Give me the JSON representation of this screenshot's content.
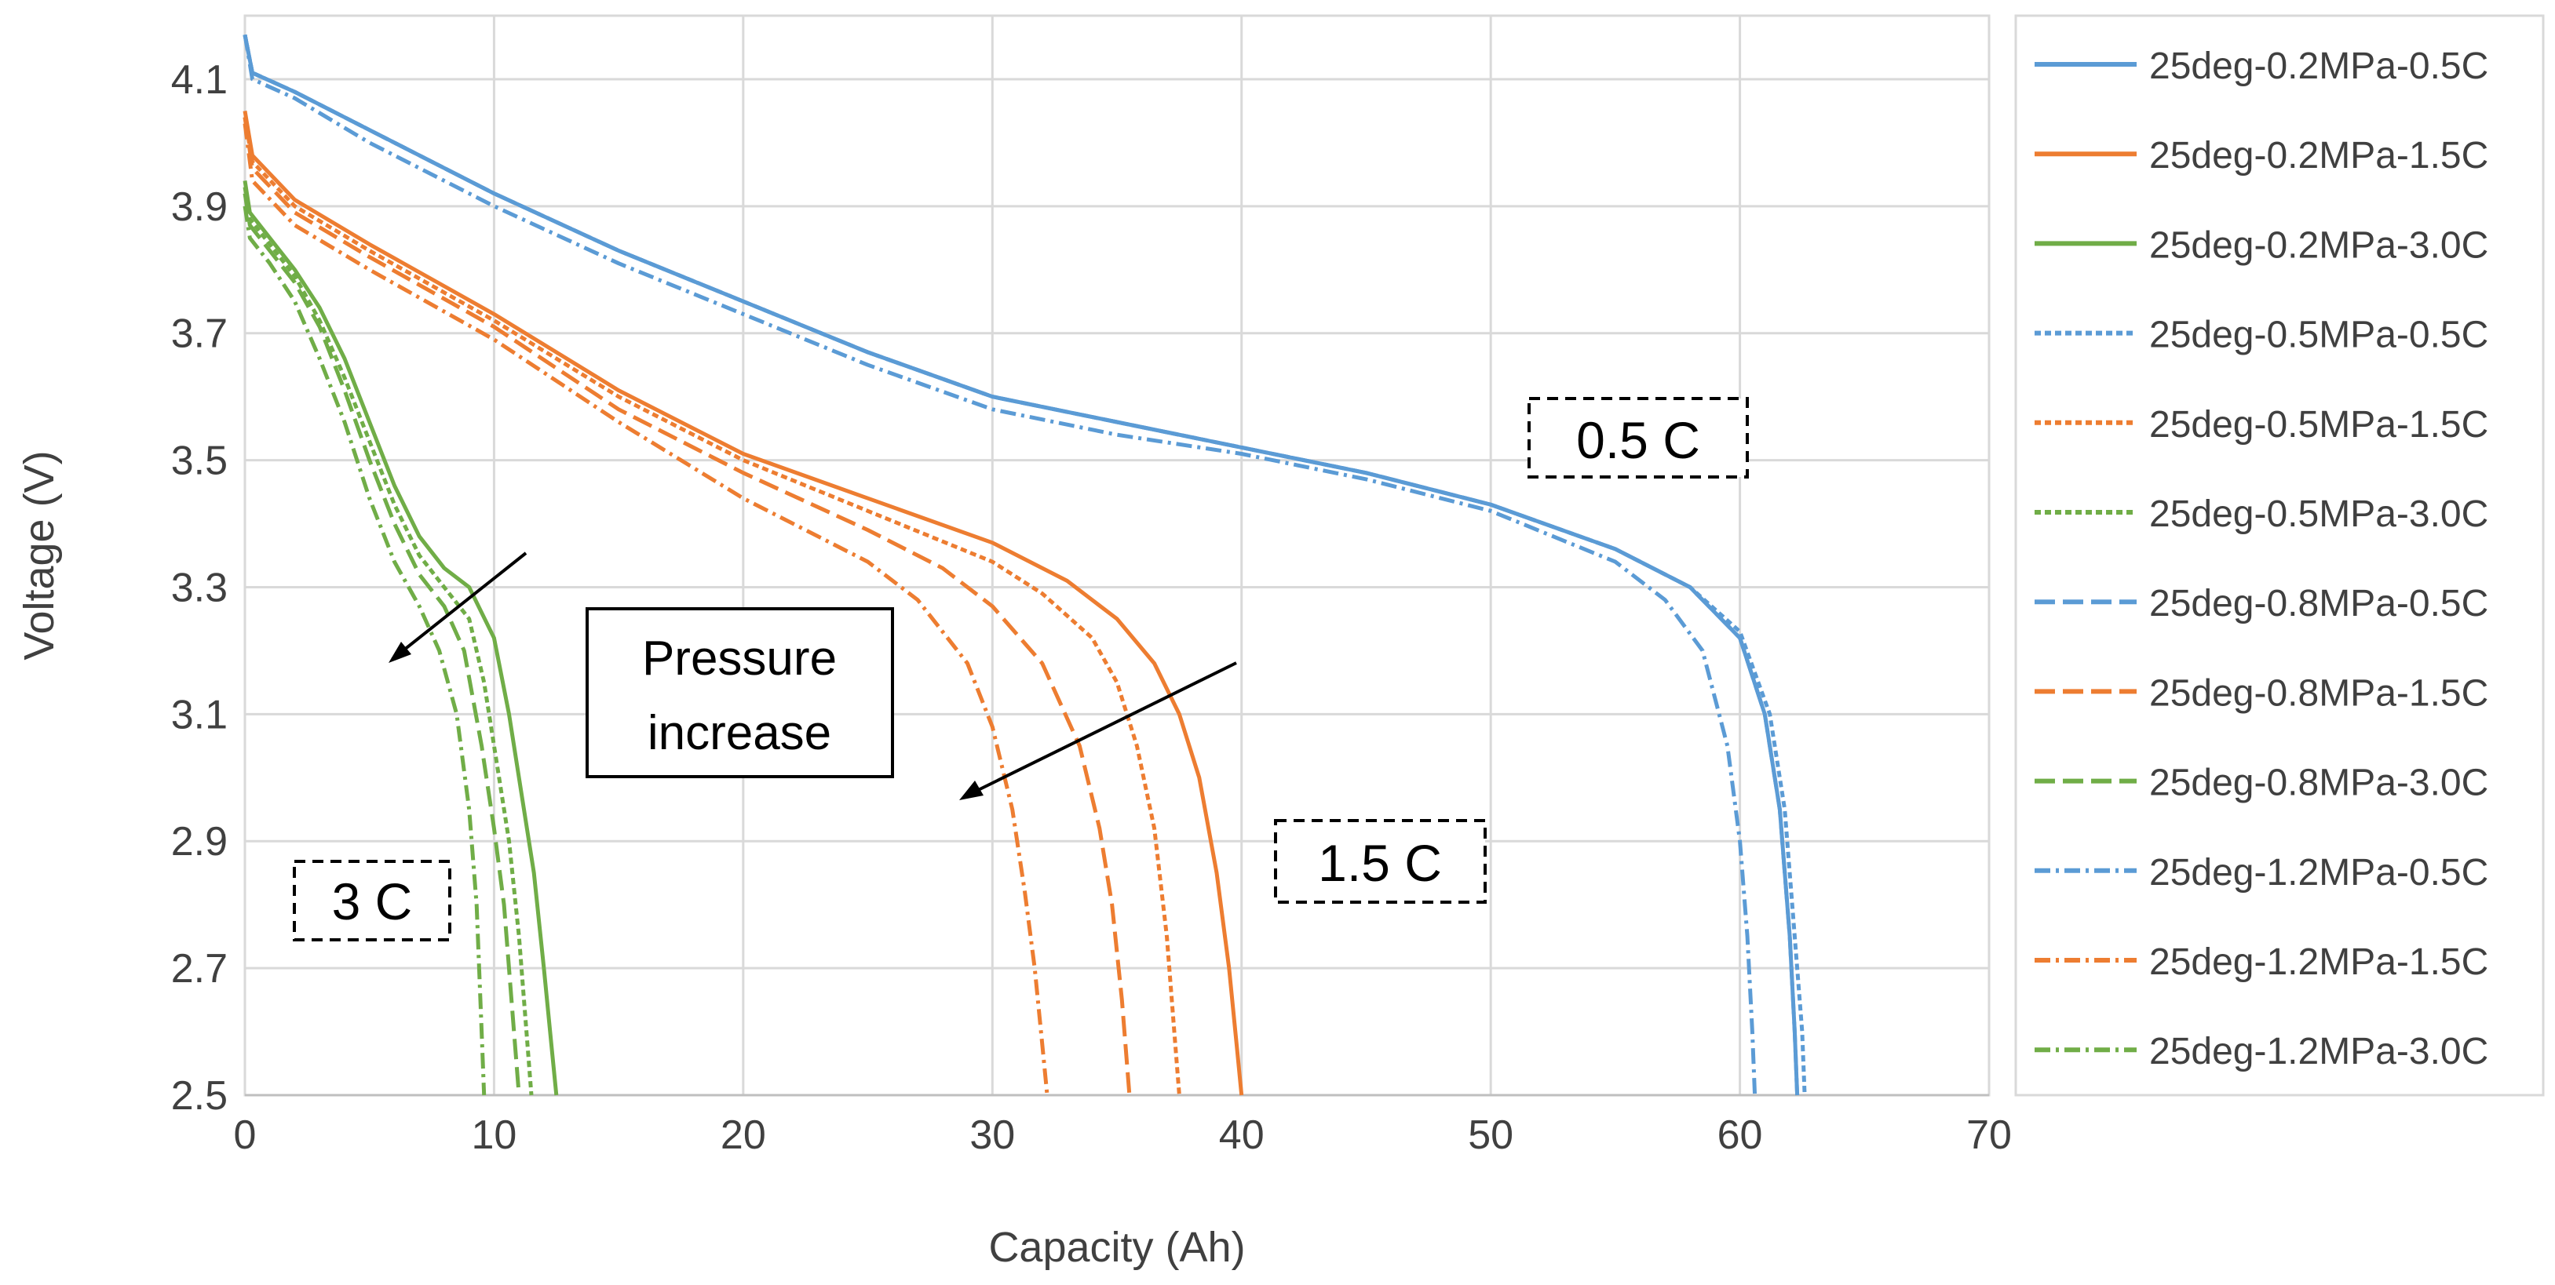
{
  "chart_data": {
    "type": "line",
    "title": "",
    "xlabel": "Capacity (Ah)",
    "ylabel": "Voltage (V)",
    "xlim": [
      0,
      70
    ],
    "ylim": [
      2.5,
      4.2
    ],
    "xticks": [
      0,
      10,
      20,
      30,
      40,
      50,
      60,
      70
    ],
    "yticks": [
      2.5,
      2.7,
      2.9,
      3.1,
      3.3,
      3.5,
      3.7,
      3.9,
      4.1
    ],
    "grid": true,
    "legend_position": "right",
    "colors": {
      "c05": "#5b9bd5",
      "c15": "#ed7d31",
      "c30": "#70ad47"
    },
    "series": [
      {
        "name": "25deg-0.2MPa-0.5C",
        "color": "#5b9bd5",
        "dash": "solid",
        "x": [
          0,
          0.3,
          2,
          5,
          10,
          15,
          20,
          25,
          30,
          35,
          40,
          45,
          50,
          55,
          58,
          60,
          61,
          61.6,
          62,
          62.2,
          62.3
        ],
        "y": [
          4.17,
          4.11,
          4.08,
          4.02,
          3.92,
          3.83,
          3.75,
          3.67,
          3.6,
          3.56,
          3.52,
          3.48,
          3.43,
          3.36,
          3.3,
          3.22,
          3.1,
          2.95,
          2.75,
          2.6,
          2.5
        ]
      },
      {
        "name": "25deg-0.2MPa-1.5C",
        "color": "#ed7d31",
        "dash": "solid",
        "x": [
          0,
          0.3,
          2,
          5,
          10,
          15,
          20,
          25,
          30,
          33,
          35,
          36.5,
          37.5,
          38.3,
          39,
          39.5,
          39.8,
          40
        ],
        "y": [
          4.05,
          3.98,
          3.91,
          3.84,
          3.73,
          3.61,
          3.51,
          3.44,
          3.37,
          3.31,
          3.25,
          3.18,
          3.1,
          3.0,
          2.85,
          2.7,
          2.58,
          2.5
        ]
      },
      {
        "name": "25deg-0.2MPa-3.0C",
        "color": "#70ad47",
        "dash": "solid",
        "x": [
          0,
          0.2,
          1,
          2,
          3,
          4,
          5,
          6,
          7,
          8,
          9,
          10,
          10.6,
          11.2,
          11.6,
          12,
          12.3,
          12.5
        ],
        "y": [
          3.94,
          3.89,
          3.85,
          3.8,
          3.74,
          3.66,
          3.56,
          3.46,
          3.38,
          3.33,
          3.3,
          3.22,
          3.1,
          2.95,
          2.85,
          2.7,
          2.58,
          2.5
        ]
      },
      {
        "name": "25deg-0.5MPa-0.5C",
        "color": "#5b9bd5",
        "dash": "8,5",
        "x": [
          0,
          0.3,
          2,
          5,
          10,
          15,
          20,
          25,
          30,
          35,
          40,
          45,
          50,
          55,
          58,
          60,
          61.2,
          61.8,
          62.2,
          62.5,
          62.6
        ],
        "y": [
          4.17,
          4.11,
          4.08,
          4.02,
          3.92,
          3.83,
          3.75,
          3.67,
          3.6,
          3.56,
          3.52,
          3.48,
          3.43,
          3.36,
          3.3,
          3.23,
          3.1,
          2.95,
          2.75,
          2.6,
          2.5
        ]
      },
      {
        "name": "25deg-0.5MPa-1.5C",
        "color": "#ed7d31",
        "dash": "8,5",
        "x": [
          0,
          0.3,
          2,
          5,
          10,
          15,
          20,
          25,
          30,
          32,
          34,
          35,
          35.8,
          36.5,
          37,
          37.3,
          37.5
        ],
        "y": [
          4.04,
          3.97,
          3.9,
          3.83,
          3.72,
          3.6,
          3.5,
          3.42,
          3.34,
          3.29,
          3.22,
          3.15,
          3.05,
          2.92,
          2.75,
          2.6,
          2.5
        ]
      },
      {
        "name": "25deg-0.5MPa-3.0C",
        "color": "#70ad47",
        "dash": "8,5",
        "x": [
          0,
          0.2,
          1,
          2,
          3,
          4,
          5,
          6,
          7,
          8,
          9,
          9.6,
          10.2,
          10.6,
          11,
          11.3,
          11.5
        ],
        "y": [
          3.93,
          3.88,
          3.84,
          3.79,
          3.72,
          3.63,
          3.53,
          3.43,
          3.35,
          3.3,
          3.25,
          3.15,
          3.0,
          2.9,
          2.75,
          2.6,
          2.5
        ]
      },
      {
        "name": "25deg-0.8MPa-0.5C",
        "color": "#5b9bd5",
        "dash": "26,10",
        "x": [
          0,
          0.3,
          2,
          5,
          10,
          15,
          20,
          25,
          30,
          35,
          40,
          45,
          50,
          55,
          58,
          60,
          61,
          61.6,
          62,
          62.2,
          62.3
        ],
        "y": [
          4.17,
          4.11,
          4.08,
          4.02,
          3.92,
          3.83,
          3.75,
          3.67,
          3.6,
          3.56,
          3.52,
          3.48,
          3.43,
          3.36,
          3.3,
          3.22,
          3.1,
          2.95,
          2.75,
          2.6,
          2.5
        ]
      },
      {
        "name": "25deg-0.8MPa-1.5C",
        "color": "#ed7d31",
        "dash": "26,10",
        "x": [
          0,
          0.3,
          2,
          5,
          10,
          15,
          20,
          25,
          28,
          30,
          32,
          33.5,
          34.3,
          34.8,
          35.2,
          35.5
        ],
        "y": [
          4.04,
          3.96,
          3.89,
          3.82,
          3.71,
          3.58,
          3.48,
          3.39,
          3.33,
          3.27,
          3.18,
          3.05,
          2.92,
          2.8,
          2.65,
          2.5
        ]
      },
      {
        "name": "25deg-0.8MPa-3.0C",
        "color": "#70ad47",
        "dash": "26,10",
        "x": [
          0,
          0.2,
          1,
          2,
          3,
          4,
          5,
          6,
          7,
          8,
          8.8,
          9.5,
          10,
          10.4,
          10.8,
          11
        ],
        "y": [
          3.92,
          3.87,
          3.83,
          3.78,
          3.71,
          3.61,
          3.5,
          3.4,
          3.32,
          3.27,
          3.2,
          3.05,
          2.92,
          2.8,
          2.6,
          2.5
        ]
      },
      {
        "name": "25deg-1.2MPa-0.5C",
        "color": "#5b9bd5",
        "dash": "20,7,4,7",
        "x": [
          0,
          0.3,
          2,
          5,
          10,
          15,
          20,
          25,
          30,
          35,
          40,
          45,
          50,
          55,
          57,
          58.5,
          59.5,
          60,
          60.3,
          60.5,
          60.6
        ],
        "y": [
          4.17,
          4.1,
          4.07,
          4.0,
          3.9,
          3.81,
          3.73,
          3.65,
          3.58,
          3.54,
          3.51,
          3.47,
          3.42,
          3.34,
          3.28,
          3.2,
          3.05,
          2.9,
          2.75,
          2.6,
          2.5
        ]
      },
      {
        "name": "25deg-1.2MPa-1.5C",
        "color": "#ed7d31",
        "dash": "20,7,4,7",
        "x": [
          0,
          0.3,
          2,
          5,
          10,
          15,
          20,
          25,
          27,
          29,
          30,
          30.8,
          31.3,
          31.7,
          32,
          32.2
        ],
        "y": [
          4.03,
          3.94,
          3.87,
          3.8,
          3.69,
          3.56,
          3.44,
          3.34,
          3.28,
          3.18,
          3.08,
          2.95,
          2.82,
          2.7,
          2.58,
          2.5
        ]
      },
      {
        "name": "25deg-1.2MPa-3.0C",
        "color": "#70ad47",
        "dash": "20,7,4,7",
        "x": [
          0,
          0.2,
          1,
          2,
          3,
          4,
          5,
          6,
          7,
          7.8,
          8.5,
          9,
          9.3,
          9.5,
          9.6
        ],
        "y": [
          3.9,
          3.85,
          3.81,
          3.75,
          3.66,
          3.56,
          3.44,
          3.34,
          3.27,
          3.2,
          3.1,
          2.95,
          2.8,
          2.6,
          2.5
        ]
      }
    ],
    "annotations": {
      "pressure_label_line1": "Pressure",
      "pressure_label_line2": "increase",
      "label_05c": "0.5 C",
      "label_15c": "1.5 C",
      "label_3c": "3 C"
    }
  }
}
